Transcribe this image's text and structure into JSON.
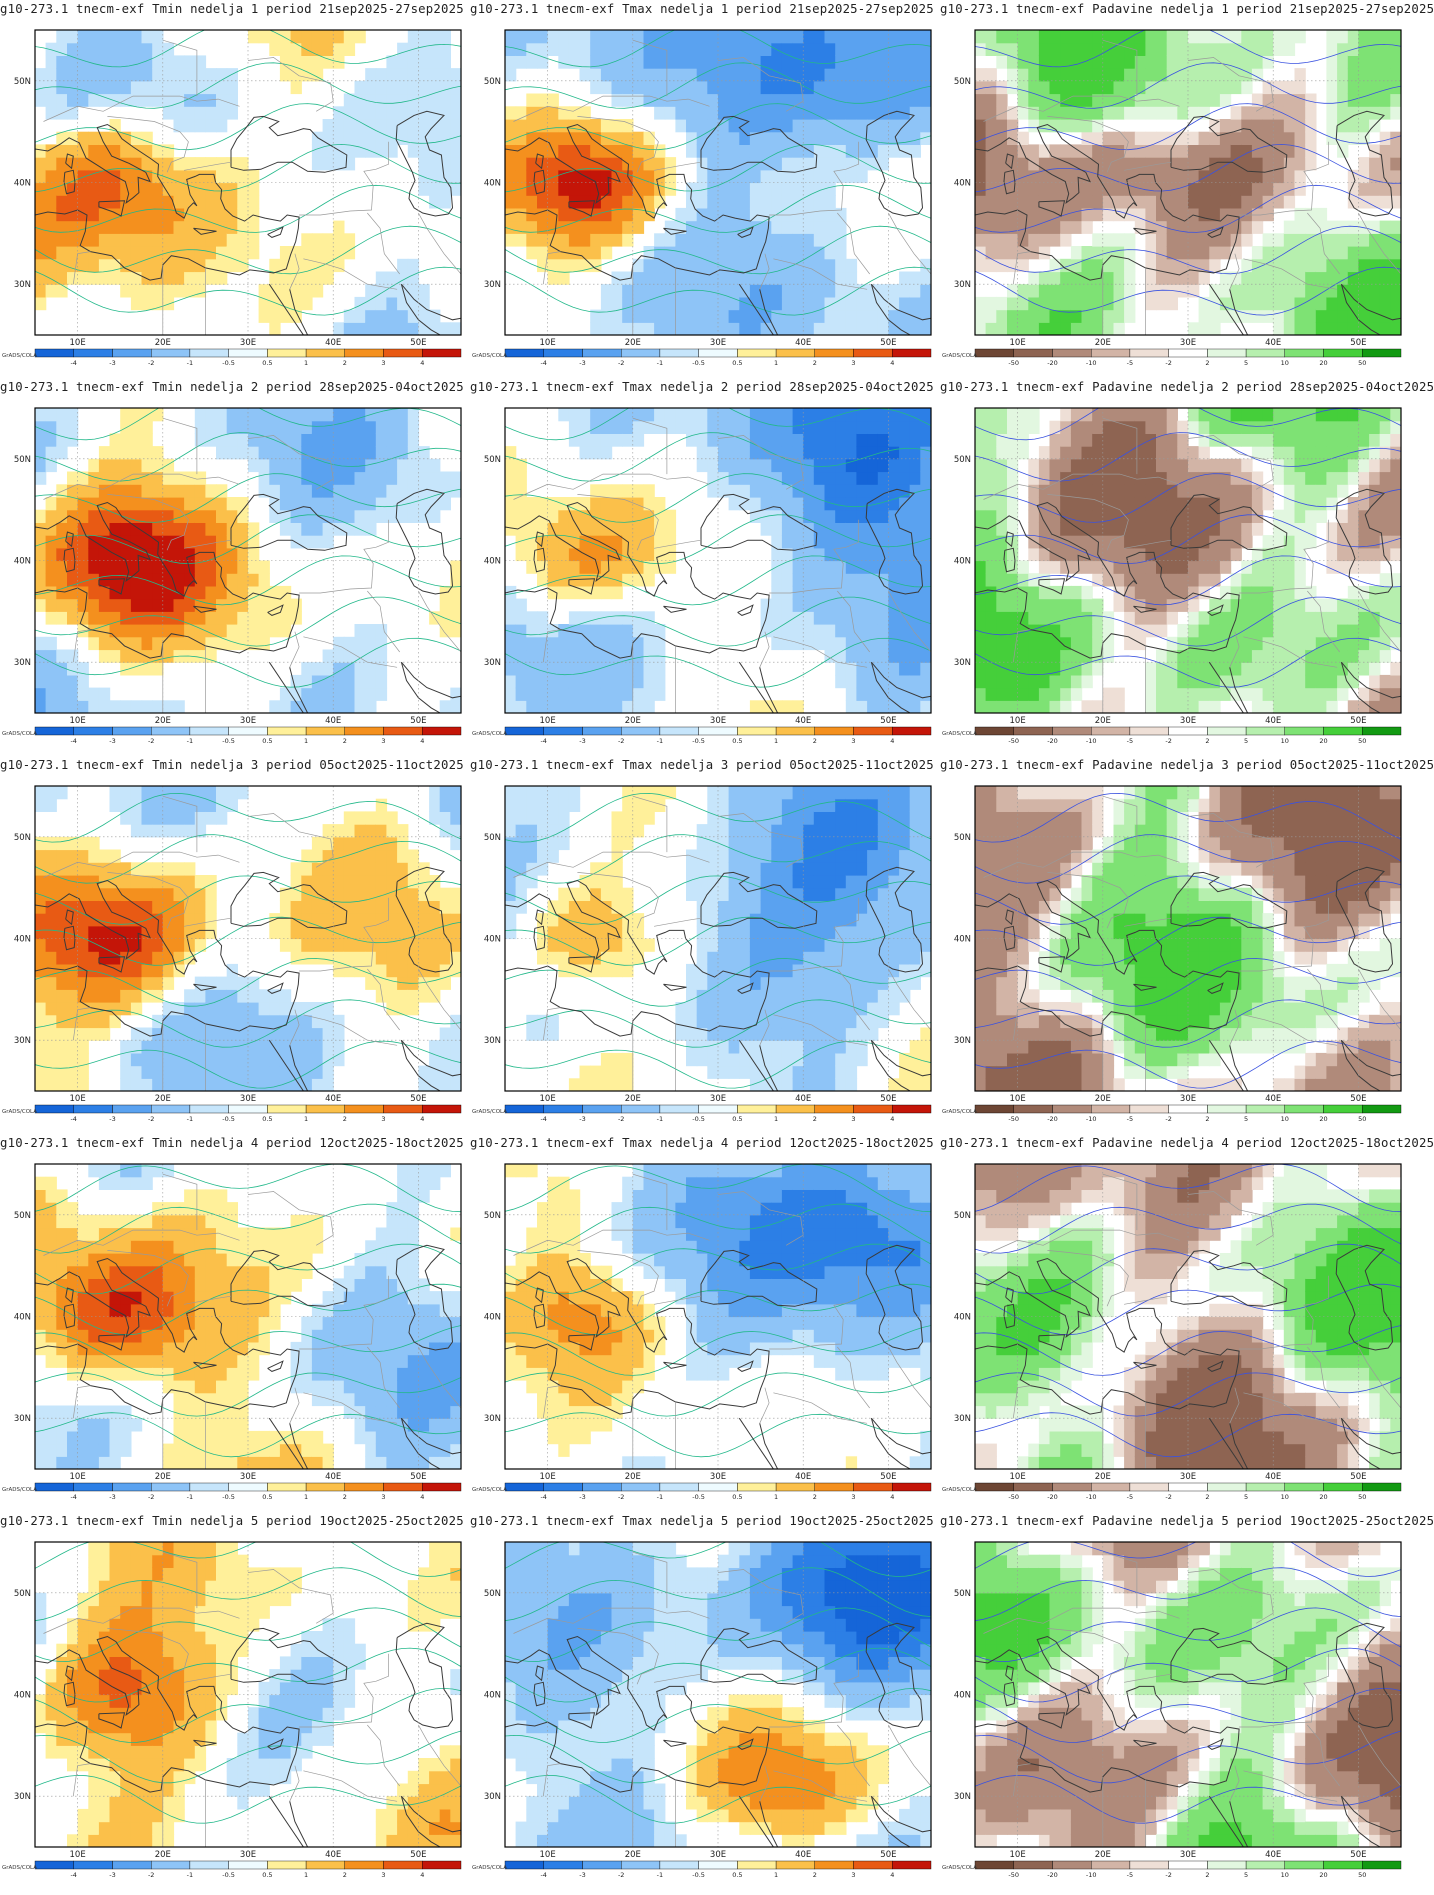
{
  "credit": "GrADS/COLA",
  "axis": {
    "lat_labels": [
      "50N",
      "40N",
      "30N"
    ],
    "lon_labels": [
      "10E",
      "20E",
      "30E",
      "40E",
      "50E"
    ]
  },
  "legends": {
    "temperature": {
      "labels": [
        "-4",
        "-3",
        "-2",
        "-1",
        "-0.5",
        "0.5",
        "1",
        "2",
        "3",
        "4"
      ],
      "colors": [
        "#1565d8",
        "#2c7fe6",
        "#5aa2f0",
        "#8ec4f7",
        "#c6e5fb",
        "#eefbff",
        "#fff09a",
        "#fbc04a",
        "#f4901e",
        "#e85a14",
        "#c41508"
      ]
    },
    "precipitation": {
      "labels": [
        "-50",
        "-20",
        "-10",
        "-5",
        "-2",
        "2",
        "5",
        "10",
        "20",
        "50"
      ],
      "colors": [
        "#6d4634",
        "#8e6452",
        "#b08a7a",
        "#d2b4a6",
        "#eedfd6",
        "#ffffff",
        "#e2f7e0",
        "#b6efae",
        "#7ee274",
        "#45cf3a",
        "#129a12"
      ]
    }
  },
  "panels": [
    {
      "title": "g10-273.1 tnecm-exf Tmin nedelja 1 period 21sep2025-27sep2025",
      "variable": "Tmin",
      "week": 1
    },
    {
      "title": "g10-273.1 tnecm-exf Tmax nedelja 1 period 21sep2025-27sep2025",
      "variable": "Tmax",
      "week": 1
    },
    {
      "title": "g10-273.1 tnecm-exf Padavine nedelja 1 period 21sep2025-27sep2025",
      "variable": "Padavine",
      "week": 1
    },
    {
      "title": "g10-273.1 tnecm-exf Tmin nedelja 2 period 28sep2025-04oct2025",
      "variable": "Tmin",
      "week": 2
    },
    {
      "title": "g10-273.1 tnecm-exf Tmax nedelja 2 period 28sep2025-04oct2025",
      "variable": "Tmax",
      "week": 2
    },
    {
      "title": "g10-273.1 tnecm-exf Padavine nedelja 2 period 28sep2025-04oct2025",
      "variable": "Padavine",
      "week": 2
    },
    {
      "title": "g10-273.1 tnecm-exf Tmin nedelja 3 period 05oct2025-11oct2025",
      "variable": "Tmin",
      "week": 3
    },
    {
      "title": "g10-273.1 tnecm-exf Tmax nedelja 3 period 05oct2025-11oct2025",
      "variable": "Tmax",
      "week": 3
    },
    {
      "title": "g10-273.1 tnecm-exf Padavine nedelja 3 period 05oct2025-11oct2025",
      "variable": "Padavine",
      "week": 3
    },
    {
      "title": "g10-273.1 tnecm-exf Tmin nedelja 4 period 12oct2025-18oct2025",
      "variable": "Tmin",
      "week": 4
    },
    {
      "title": "g10-273.1 tnecm-exf Tmax nedelja 4 period 12oct2025-18oct2025",
      "variable": "Tmax",
      "week": 4
    },
    {
      "title": "g10-273.1 tnecm-exf Padavine nedelja 4 period 12oct2025-18oct2025",
      "variable": "Padavine",
      "week": 4
    },
    {
      "title": "g10-273.1 tnecm-exf Tmin nedelja 5 period 19oct2025-25oct2025",
      "variable": "Tmin",
      "week": 5
    },
    {
      "title": "g10-273.1 tnecm-exf Tmax nedelja 5 period 19oct2025-25oct2025",
      "variable": "Tmax",
      "week": 5
    },
    {
      "title": "g10-273.1 tnecm-exf Padavine nedelja 5 period 19oct2025-25oct2025",
      "variable": "Padavine",
      "week": 5
    }
  ]
}
